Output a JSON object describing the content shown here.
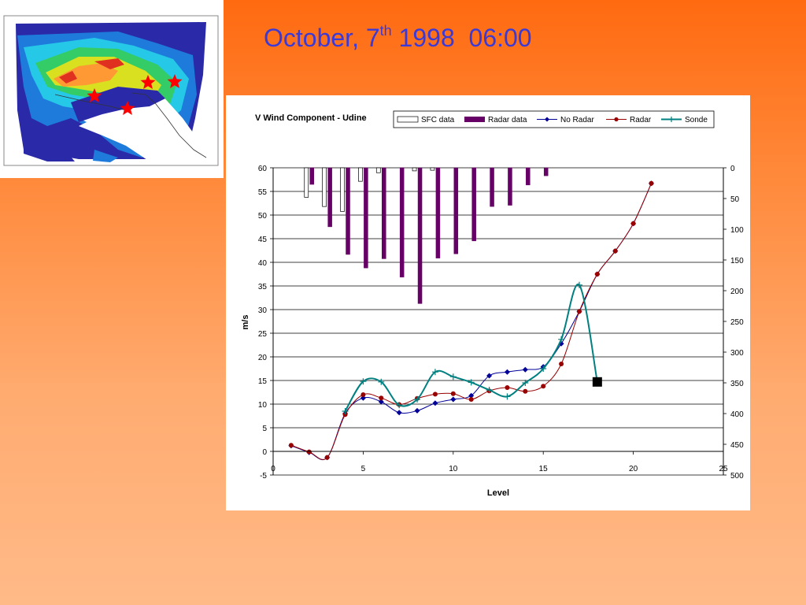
{
  "slide": {
    "title_main": "October, 7",
    "title_sup": "th",
    "title_rest": " 1998  06:00"
  },
  "map": {
    "description_icon": "precipitation-map-icon",
    "marker_icon": "red-star-icon",
    "marker_color": "#ff0000"
  },
  "chart_data": {
    "type": "bar+line",
    "title": "V Wind Component - Udine",
    "xlabel": "Level",
    "ylabel": "m/s",
    "xlim": [
      0,
      25
    ],
    "ylim": [
      -5,
      60
    ],
    "y2lim": [
      0,
      500
    ],
    "y2_inverted": true,
    "x_ticks": [
      0,
      5,
      10,
      15,
      20,
      25
    ],
    "y_ticks": [
      -5,
      0,
      5,
      10,
      15,
      20,
      25,
      30,
      35,
      40,
      45,
      50,
      55,
      60
    ],
    "y2_ticks": [
      0,
      50,
      100,
      150,
      200,
      250,
      300,
      350,
      400,
      450,
      500
    ],
    "grid": "horizontal",
    "legend_position": "top",
    "colors": {
      "sfc": "#ffffff",
      "radar_bars": "#660066",
      "no_radar": "#000099",
      "radar": "#990000",
      "sonde": "#008080",
      "marker": "#000000"
    },
    "legend": [
      "SFC data",
      "Radar data",
      "No Radar",
      "Radar",
      "Sonde"
    ],
    "bars_sfc": {
      "name": "SFC data",
      "axis": "secondary",
      "x": [
        2,
        3,
        4,
        5,
        6,
        8,
        9
      ],
      "values": [
        48,
        63,
        71,
        22,
        8,
        5,
        4
      ]
    },
    "bars_radar": {
      "name": "Radar data",
      "axis": "secondary",
      "x": [
        2,
        3,
        4,
        5,
        6,
        7,
        8,
        9,
        10,
        11,
        12,
        13,
        14,
        15,
        16,
        17,
        18
      ],
      "values": [
        27,
        96,
        141,
        163,
        148,
        178,
        221,
        147,
        140,
        119,
        63,
        61,
        28,
        13,
        0,
        0,
        0
      ]
    },
    "series": [
      {
        "name": "No Radar",
        "x": [
          1,
          2,
          3,
          4,
          5,
          6,
          7,
          8,
          9,
          10,
          11,
          12,
          13,
          14,
          15,
          16,
          17,
          18,
          19,
          20,
          21
        ],
        "values": [
          1.2,
          -0.2,
          -1.3,
          8.0,
          11.3,
          10.5,
          8.2,
          8.6,
          10.2,
          11.0,
          11.8,
          16.0,
          16.8,
          17.3,
          17.9,
          22.8,
          29.6,
          37.5,
          42.4,
          48.2,
          56.7
        ]
      },
      {
        "name": "Radar",
        "x": [
          1,
          2,
          3,
          4,
          5,
          6,
          7,
          8,
          9,
          10,
          11,
          12,
          13,
          14,
          15,
          16,
          17,
          18,
          19,
          20,
          21
        ],
        "values": [
          1.3,
          -0.1,
          -1.3,
          7.8,
          12.0,
          11.3,
          9.9,
          11.2,
          12.1,
          12.2,
          11.0,
          12.8,
          13.5,
          12.7,
          13.8,
          18.5,
          29.6,
          37.5,
          42.4,
          48.2,
          56.7
        ]
      },
      {
        "name": "Sonde",
        "x": [
          4,
          5,
          6,
          7,
          8,
          9,
          10,
          11,
          12,
          13,
          14,
          15,
          16,
          17,
          18
        ],
        "values": [
          8.5,
          14.8,
          14.7,
          9.8,
          11.0,
          16.8,
          15.8,
          14.6,
          13.0,
          11.6,
          14.5,
          17.5,
          23.7,
          35.2,
          14.7
        ]
      }
    ],
    "marker_point": {
      "x": 18,
      "y": 14.7
    }
  }
}
